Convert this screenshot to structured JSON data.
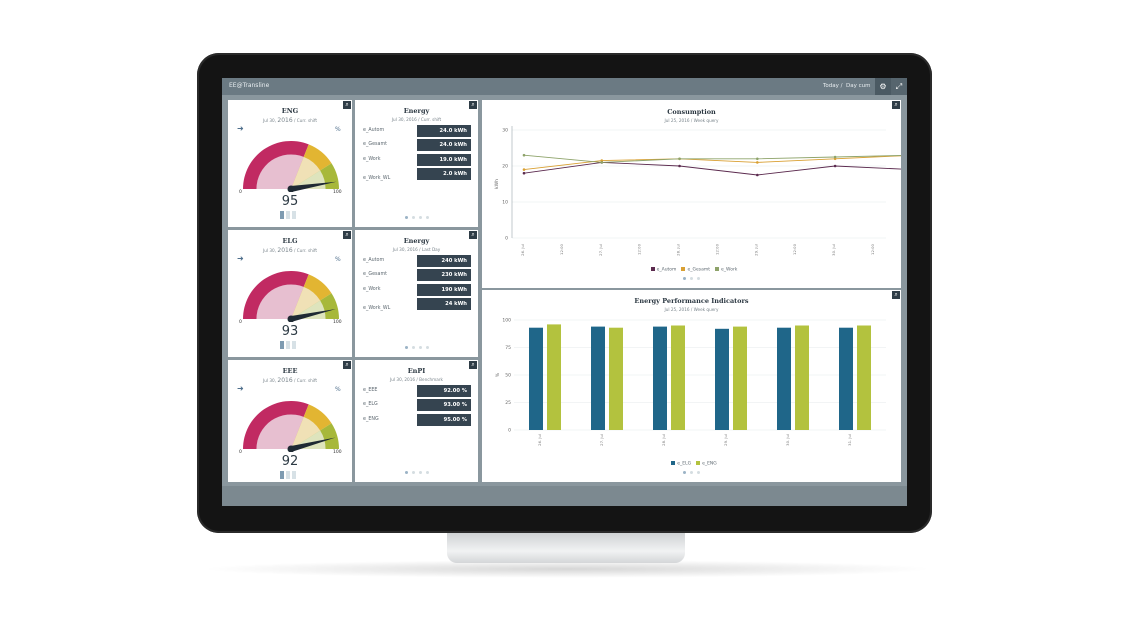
{
  "app": {
    "title": "EE@Transline",
    "nav_today": "Today /",
    "nav_period": "Day cum",
    "gear_icon": "gear-icon",
    "expand_icon": "expand-icon"
  },
  "gauges": [
    {
      "title": "ENG",
      "date": "Jul 30,",
      "year": "2016",
      "period": "/ Curr. shift",
      "pct_symbol": "%",
      "min": "0",
      "max": "100",
      "value": 95,
      "value_text": "95"
    },
    {
      "title": "ELG",
      "date": "Jul 30,",
      "year": "2016",
      "period": "/ Curr. shift",
      "pct_symbol": "%",
      "min": "0",
      "max": "100",
      "value": 93,
      "value_text": "93"
    },
    {
      "title": "EEE",
      "date": "Jul 30,",
      "year": "2016",
      "period": "/ Curr. shift",
      "pct_symbol": "%",
      "min": "0",
      "max": "100",
      "value": 92,
      "value_text": "92"
    }
  ],
  "kpi_cards": [
    {
      "title": "Energy",
      "subtitle": "Jul 30, 2016 / Curr. shift",
      "rows": [
        {
          "name": "e_Autom",
          "value": "24.0 kWh"
        },
        {
          "name": "e_Gesamt",
          "value": "24.0 kWh"
        },
        {
          "name": "e_Work",
          "value": "19.0 kWh"
        },
        {
          "name": "e_Work_WL",
          "value": "2.0 kWh"
        }
      ]
    },
    {
      "title": "Energy",
      "subtitle": "Jul 30, 2016 / Last Day",
      "rows": [
        {
          "name": "e_Autom",
          "value": "240 kWh"
        },
        {
          "name": "e_Gesamt",
          "value": "230 kWh"
        },
        {
          "name": "e_Work",
          "value": "190 kWh"
        },
        {
          "name": "e_Work_WL",
          "value": "24 kWh"
        }
      ]
    },
    {
      "title": "EnPI",
      "subtitle": "Jul 30, 2016 / Benchmark",
      "rows": [
        {
          "name": "e_EEE",
          "value": "92.00 %"
        },
        {
          "name": "e_ELG",
          "value": "93.00 %"
        },
        {
          "name": "e_ENG",
          "value": "95.00 %"
        }
      ]
    }
  ],
  "consumption": {
    "title": "Consumption",
    "subtitle": "Jul 25, 2016 / Week query",
    "chart_data": {
      "type": "line",
      "title": "Consumption",
      "ylabel": "kWh",
      "ylim": [
        0,
        30
      ],
      "yticks": [
        "0",
        "10",
        "20",
        "30"
      ],
      "categories": [
        "26. Jul",
        "12:00",
        "27. Jul",
        "12:00",
        "28. Jul",
        "12:00",
        "29. Jul",
        "12:00",
        "30. Jul",
        "12:00"
      ],
      "grid": true,
      "legend": "bottom",
      "series": [
        {
          "name": "e_Autom",
          "color": "#5b2a4e",
          "points": [
            [
              0,
              18
            ],
            [
              2,
              21
            ],
            [
              4,
              20
            ],
            [
              6,
              17.5
            ],
            [
              8,
              20
            ],
            [
              10,
              19
            ]
          ]
        },
        {
          "name": "e_Gesamt",
          "color": "#d9a033",
          "points": [
            [
              0,
              19
            ],
            [
              2,
              21.5
            ],
            [
              4,
              22
            ],
            [
              6,
              21
            ],
            [
              8,
              22
            ],
            [
              10,
              23
            ]
          ]
        },
        {
          "name": "e_Work",
          "color": "#8ea36a",
          "points": [
            [
              0,
              23
            ],
            [
              2,
              21
            ],
            [
              4,
              22
            ],
            [
              6,
              22
            ],
            [
              8,
              22.5
            ],
            [
              10,
              23
            ]
          ]
        }
      ]
    }
  },
  "epi": {
    "title": "Energy Performance Indicators",
    "subtitle": "Jul 25, 2016 / Week query",
    "chart_data": {
      "type": "bar",
      "title": "Energy Performance Indicators",
      "ylabel": "%",
      "ylim": [
        0,
        100
      ],
      "yticks": [
        "0",
        "25",
        "50",
        "75",
        "100"
      ],
      "categories": [
        "26. Jul",
        "27. Jul",
        "28. Jul",
        "29. Jul",
        "30. Jul",
        "31. Jul"
      ],
      "grid": true,
      "legend": "bottom",
      "series": [
        {
          "name": "e_ELG",
          "color": "#1f6689",
          "values": [
            93,
            94,
            94,
            92,
            93,
            93
          ]
        },
        {
          "name": "e_ENG",
          "color": "#b3c23e",
          "values": [
            96,
            93,
            95,
            94,
            95,
            95
          ]
        }
      ]
    }
  }
}
